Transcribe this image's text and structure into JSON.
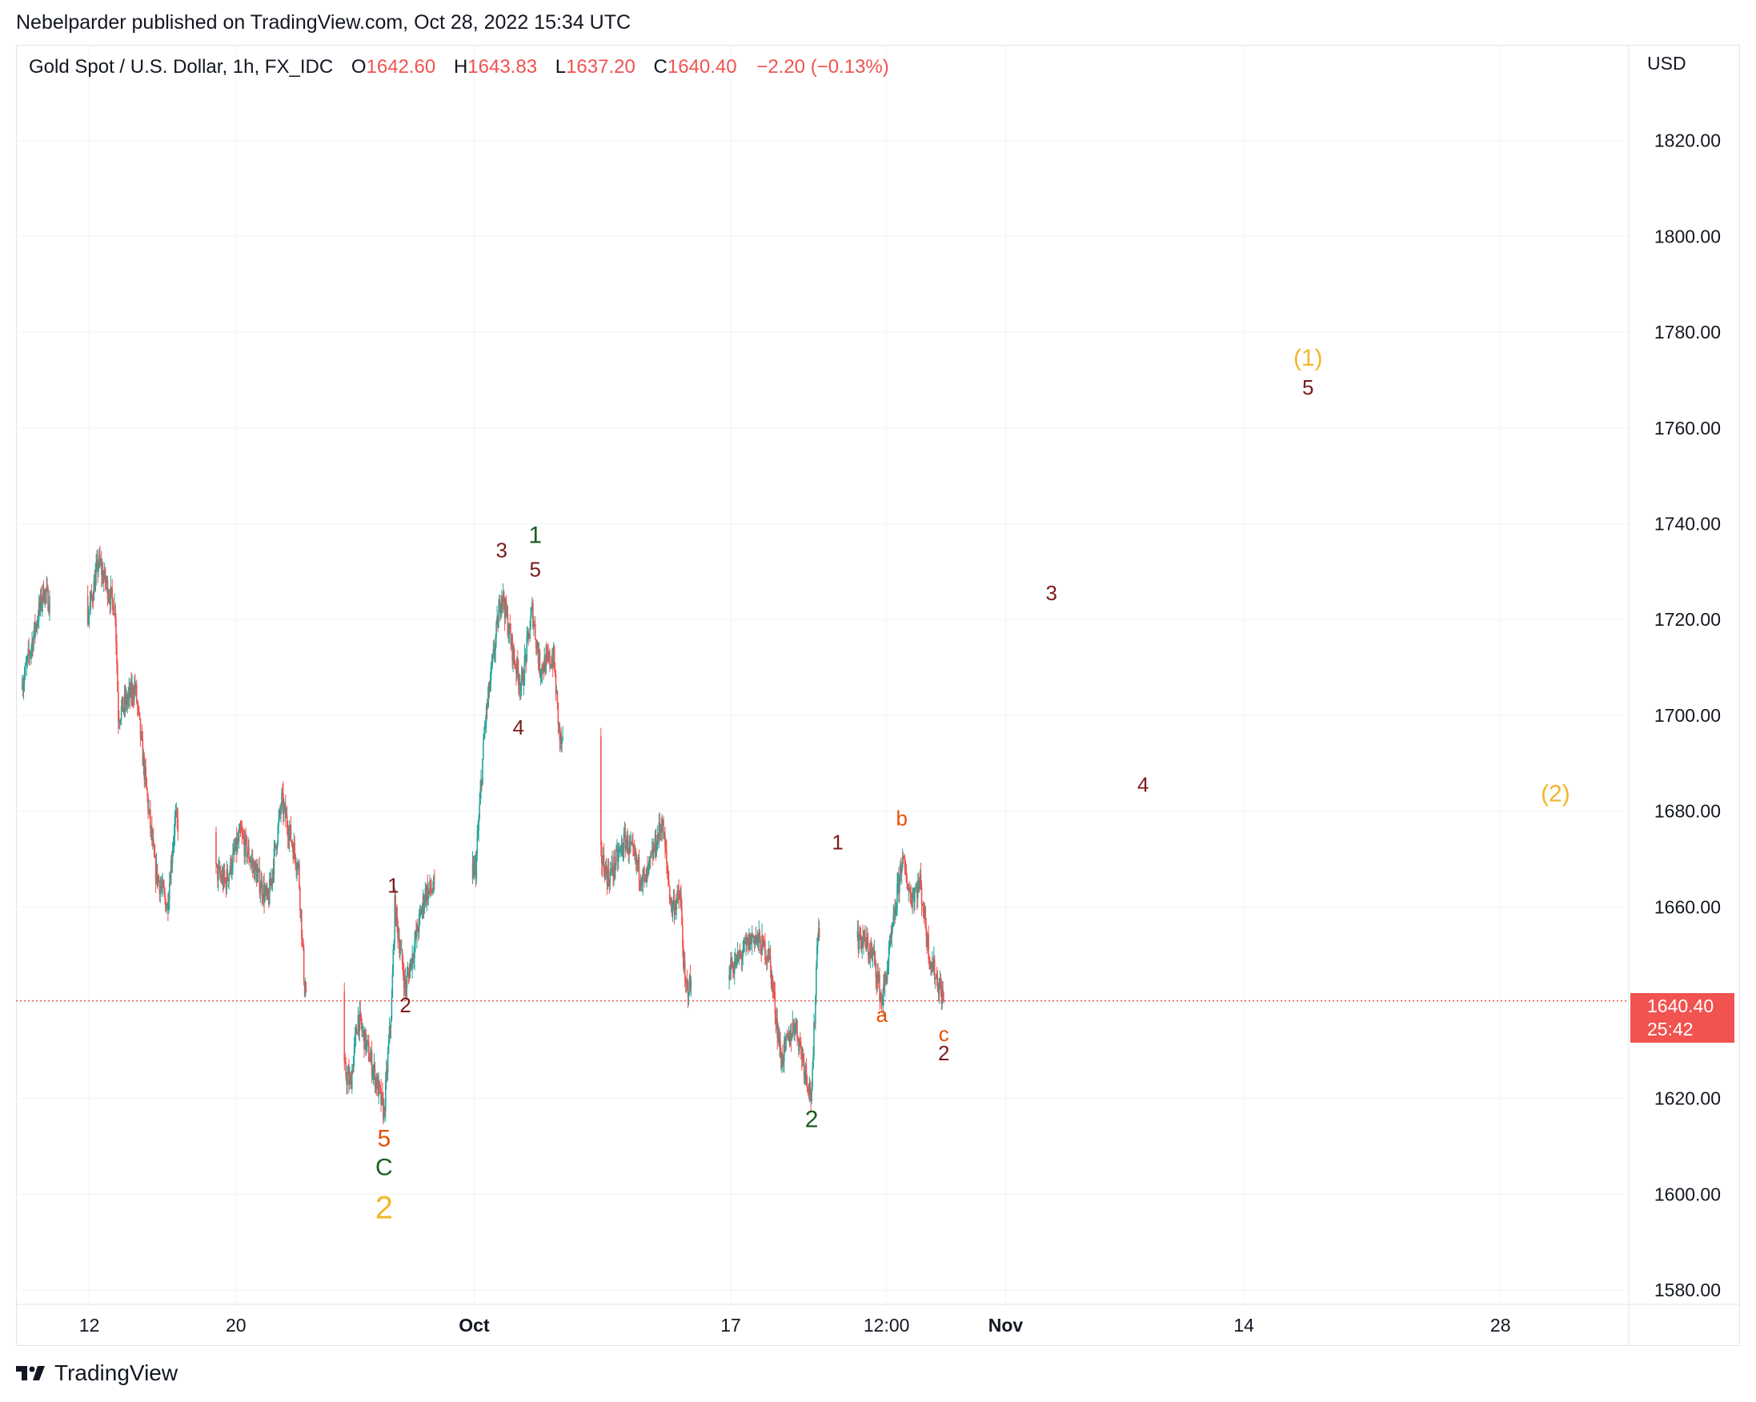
{
  "header": {
    "published": "Nebelparder published on TradingView.com, Oct 28, 2022 15:34 UTC"
  },
  "legend": {
    "symbol": "Gold Spot / U.S. Dollar, 1h, FX_IDC",
    "o_label": "O",
    "o_value": "1642.60",
    "h_label": "H",
    "h_value": "1643.83",
    "l_label": "L",
    "l_value": "1637.20",
    "c_label": "C",
    "c_value": "1640.40",
    "change": "−2.20 (−0.13%)"
  },
  "price_axis": {
    "currency": "USD",
    "current_price": "1640.40",
    "countdown": "25:42"
  },
  "brand": {
    "name": "TradingView"
  },
  "colors": {
    "up": "#26a69a",
    "down": "#ef5350",
    "price_line": "#ef5350",
    "wave_dark_red": "#7b1a1a",
    "wave_green": "#1b5e20",
    "wave_orange": "#e65100",
    "wave_gold": "#f4b62a"
  },
  "chart_data": {
    "type": "candlestick",
    "interval": "1h",
    "y_ticks": [
      1580,
      1600,
      1620,
      1640,
      1660,
      1680,
      1700,
      1720,
      1740,
      1760,
      1780,
      1800,
      1820
    ],
    "y_tick_labels": [
      "1580.00",
      "1600.00",
      "1620.00",
      "1640.00",
      "1660.00",
      "1680.00",
      "1700.00",
      "1720.00",
      "1740.00",
      "1760.00",
      "1780.00",
      "1800.00",
      "1820.00"
    ],
    "ylim": [
      1577,
      1840
    ],
    "xlim": [
      "2022-09-08T00:00",
      "2022-12-05T00:00"
    ],
    "x_ticks": [
      {
        "label": "12",
        "t": "2022-09-12T00:00",
        "bold": false
      },
      {
        "label": "20",
        "t": "2022-09-20T00:00",
        "bold": false
      },
      {
        "label": "Oct",
        "t": "2022-10-03T00:00",
        "bold": true
      },
      {
        "label": "17",
        "t": "2022-10-17T00:00",
        "bold": false
      },
      {
        "label": "12:00",
        "t": "2022-10-25T12:00",
        "bold": false
      },
      {
        "label": "Nov",
        "t": "2022-11-01T00:00",
        "bold": true
      },
      {
        "label": "14",
        "t": "2022-11-14T00:00",
        "bold": false
      },
      {
        "label": "28",
        "t": "2022-11-28T00:00",
        "bold": false
      }
    ],
    "last_price": 1640.4,
    "price_path": [
      {
        "t": "2022-09-08T08:00",
        "p": 1706
      },
      {
        "t": "2022-09-09T12:00",
        "p": 1726
      },
      {
        "t": "2022-09-11T12:00",
        "p": 1712
      },
      {
        "t": "2022-09-12T12:00",
        "p": 1732
      },
      {
        "t": "2022-09-13T10:00",
        "p": 1722
      },
      {
        "t": "2022-09-13T14:00",
        "p": 1700
      },
      {
        "t": "2022-09-14T12:00",
        "p": 1706
      },
      {
        "t": "2022-09-15T14:00",
        "p": 1668
      },
      {
        "t": "2022-09-16T06:00",
        "p": 1660
      },
      {
        "t": "2022-09-16T16:00",
        "p": 1678
      },
      {
        "t": "2022-09-19T10:00",
        "p": 1665
      },
      {
        "t": "2022-09-20T06:00",
        "p": 1675
      },
      {
        "t": "2022-09-21T18:00",
        "p": 1661
      },
      {
        "t": "2022-09-22T12:00",
        "p": 1682
      },
      {
        "t": "2022-09-23T10:00",
        "p": 1668
      },
      {
        "t": "2022-09-23T18:00",
        "p": 1643
      },
      {
        "t": "2022-09-26T06:00",
        "p": 1623
      },
      {
        "t": "2022-09-26T16:00",
        "p": 1637
      },
      {
        "t": "2022-09-27T12:00",
        "p": 1626
      },
      {
        "t": "2022-09-28T02:00",
        "p": 1617
      },
      {
        "t": "2022-09-28T12:00",
        "p": 1640
      },
      {
        "t": "2022-09-28T16:00",
        "p": 1660
      },
      {
        "t": "2022-09-29T06:00",
        "p": 1643
      },
      {
        "t": "2022-09-30T08:00",
        "p": 1663
      },
      {
        "t": "2022-10-03T02:00",
        "p": 1668
      },
      {
        "t": "2022-10-03T14:00",
        "p": 1698
      },
      {
        "t": "2022-10-04T12:00",
        "p": 1726
      },
      {
        "t": "2022-10-05T04:00",
        "p": 1712
      },
      {
        "t": "2022-10-05T14:00",
        "p": 1706
      },
      {
        "t": "2022-10-06T04:00",
        "p": 1722
      },
      {
        "t": "2022-10-06T14:00",
        "p": 1710
      },
      {
        "t": "2022-10-07T08:00",
        "p": 1712
      },
      {
        "t": "2022-10-07T16:00",
        "p": 1695
      },
      {
        "t": "2022-10-10T08:00",
        "p": 1666
      },
      {
        "t": "2022-10-11T06:00",
        "p": 1674
      },
      {
        "t": "2022-10-12T08:00",
        "p": 1665
      },
      {
        "t": "2022-10-13T06:00",
        "p": 1678
      },
      {
        "t": "2022-10-13T18:00",
        "p": 1660
      },
      {
        "t": "2022-10-14T06:00",
        "p": 1662
      },
      {
        "t": "2022-10-14T12:00",
        "p": 1643
      },
      {
        "t": "2022-10-17T06:00",
        "p": 1648
      },
      {
        "t": "2022-10-18T06:00",
        "p": 1654
      },
      {
        "t": "2022-10-19T02:00",
        "p": 1650
      },
      {
        "t": "2022-10-19T18:00",
        "p": 1628
      },
      {
        "t": "2022-10-20T12:00",
        "p": 1636
      },
      {
        "t": "2022-10-21T10:00",
        "p": 1620
      },
      {
        "t": "2022-10-21T18:00",
        "p": 1656
      },
      {
        "t": "2022-10-24T06:00",
        "p": 1653
      },
      {
        "t": "2022-10-24T20:00",
        "p": 1649
      },
      {
        "t": "2022-10-25T06:00",
        "p": 1640
      },
      {
        "t": "2022-10-25T20:00",
        "p": 1655
      },
      {
        "t": "2022-10-26T08:00",
        "p": 1670
      },
      {
        "t": "2022-10-26T20:00",
        "p": 1662
      },
      {
        "t": "2022-10-27T08:00",
        "p": 1665
      },
      {
        "t": "2022-10-27T20:00",
        "p": 1650
      },
      {
        "t": "2022-10-28T15:00",
        "p": 1640.4
      }
    ],
    "wave_labels": [
      {
        "text": "5",
        "t": "2022-09-28T02:00",
        "p": 1610,
        "color": "orange",
        "size": 30
      },
      {
        "text": "C",
        "t": "2022-09-28T02:00",
        "p": 1604,
        "color": "green",
        "size": 30
      },
      {
        "text": "2",
        "t": "2022-09-28T02:00",
        "p": 1595,
        "color": "gold",
        "size": 40
      },
      {
        "text": "1",
        "t": "2022-09-28T14:00",
        "p": 1663,
        "color": "dark_red",
        "size": 26
      },
      {
        "text": "2",
        "t": "2022-09-29T06:00",
        "p": 1638,
        "color": "dark_red",
        "size": 26
      },
      {
        "text": "3",
        "t": "2022-10-04T12:00",
        "p": 1733,
        "color": "dark_red",
        "size": 26
      },
      {
        "text": "4",
        "t": "2022-10-05T10:00",
        "p": 1696,
        "color": "dark_red",
        "size": 26
      },
      {
        "text": "5",
        "t": "2022-10-06T08:00",
        "p": 1729,
        "color": "dark_red",
        "size": 26
      },
      {
        "text": "1",
        "t": "2022-10-06T08:00",
        "p": 1736,
        "color": "green",
        "size": 30
      },
      {
        "text": "2",
        "t": "2022-10-21T10:00",
        "p": 1614,
        "color": "green",
        "size": 30
      },
      {
        "text": "1",
        "t": "2022-10-22T20:00",
        "p": 1672,
        "color": "dark_red",
        "size": 26
      },
      {
        "text": "a",
        "t": "2022-10-25T06:00",
        "p": 1636,
        "color": "orange",
        "size": 26
      },
      {
        "text": "b",
        "t": "2022-10-26T08:00",
        "p": 1677,
        "color": "orange",
        "size": 26
      },
      {
        "text": "c",
        "t": "2022-10-28T15:00",
        "p": 1632,
        "color": "orange",
        "size": 26
      },
      {
        "text": "2",
        "t": "2022-10-28T15:00",
        "p": 1628,
        "color": "dark_red",
        "size": 26
      },
      {
        "text": "3",
        "t": "2022-11-03T12:00",
        "p": 1724,
        "color": "dark_red",
        "size": 26
      },
      {
        "text": "4",
        "t": "2022-11-08T12:00",
        "p": 1684,
        "color": "dark_red",
        "size": 26
      },
      {
        "text": "(1)",
        "t": "2022-11-17T12:00",
        "p": 1773,
        "color": "gold",
        "size": 30
      },
      {
        "text": "5",
        "t": "2022-11-17T12:00",
        "p": 1767,
        "color": "dark_red",
        "size": 26
      },
      {
        "text": "(2)",
        "t": "2022-12-01T00:00",
        "p": 1682,
        "color": "gold",
        "size": 30
      }
    ]
  }
}
